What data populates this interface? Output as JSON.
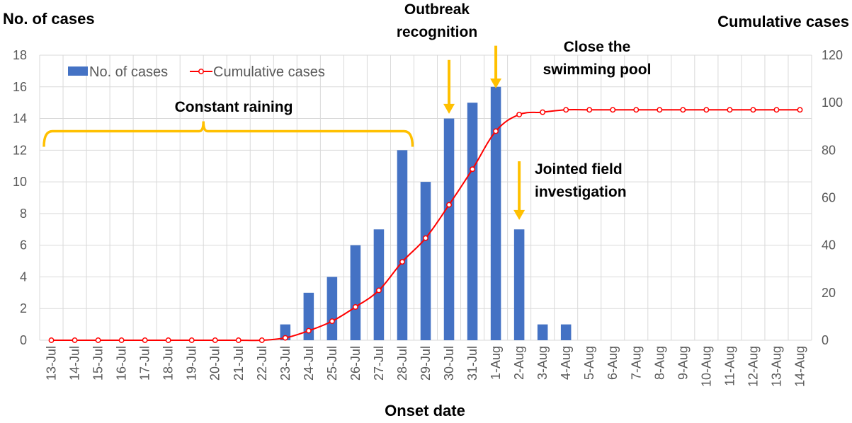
{
  "chart_data": {
    "type": "bar",
    "xlabel": "Onset date",
    "ylabel": "No. of cases",
    "y2label": "Cumulative cases",
    "ylim": [
      0,
      18
    ],
    "y2lim": [
      0,
      120
    ],
    "yticks": [
      0,
      2,
      4,
      6,
      8,
      10,
      12,
      14,
      16,
      18
    ],
    "y2ticks": [
      0,
      20,
      40,
      60,
      80,
      100,
      120
    ],
    "grid": true,
    "legend": "top-left",
    "categories": [
      "13-Jul",
      "14-Jul",
      "15-Jul",
      "16-Jul",
      "17-Jul",
      "18-Jul",
      "19-Jul",
      "20-Jul",
      "21-Jul",
      "22-Jul",
      "23-Jul",
      "24-Jul",
      "25-Jul",
      "26-Jul",
      "27-Jul",
      "28-Jul",
      "29-Jul",
      "30-Jul",
      "31-Jul",
      "1-Aug",
      "2-Aug",
      "3-Aug",
      "4-Aug",
      "5-Aug",
      "6-Aug",
      "7-Aug",
      "8-Aug",
      "9-Aug",
      "10-Aug",
      "11-Aug",
      "12-Aug",
      "13-Aug",
      "14-Aug"
    ],
    "series": [
      {
        "name": "No. of cases",
        "type": "bar",
        "axis": "left",
        "color": "#4472c4",
        "values": [
          0,
          0,
          0,
          0,
          0,
          0,
          0,
          0,
          0,
          0,
          1,
          3,
          4,
          6,
          7,
          12,
          10,
          14,
          15,
          16,
          7,
          1,
          1,
          0,
          0,
          0,
          0,
          0,
          0,
          0,
          0,
          0,
          0
        ]
      },
      {
        "name": "Cumulative cases",
        "type": "line",
        "axis": "right",
        "color": "#ff0000",
        "values": [
          0,
          0,
          0,
          0,
          0,
          0,
          0,
          0,
          0,
          0,
          1,
          4,
          8,
          14,
          21,
          33,
          43,
          57,
          72,
          88,
          95,
          96,
          97,
          97,
          97,
          97,
          97,
          97,
          97,
          97,
          97,
          97,
          97
        ]
      }
    ],
    "annotations": [
      {
        "id": "raining",
        "lines": [
          "Constant raining"
        ],
        "from_category": "13-Jul",
        "to_category": "28-Jul",
        "level": 13.2,
        "color": "#ffc000"
      },
      {
        "id": "outbreak",
        "lines": [
          "Outbreak",
          "recognition"
        ],
        "category": "30-Jul",
        "arrow_top": 17.7,
        "arrow_bottom": 14.3,
        "color": "#ffc000"
      },
      {
        "id": "pool",
        "lines": [
          "Close the",
          "swimming pool"
        ],
        "category": "1-Aug",
        "arrow_top": 18.6,
        "arrow_bottom": 15.9,
        "color": "#ffc000"
      },
      {
        "id": "field",
        "lines": [
          "Jointed field",
          "investigation"
        ],
        "category": "2-Aug",
        "arrow_top": 11.3,
        "arrow_bottom": 7.6,
        "color": "#ffc000"
      }
    ]
  }
}
